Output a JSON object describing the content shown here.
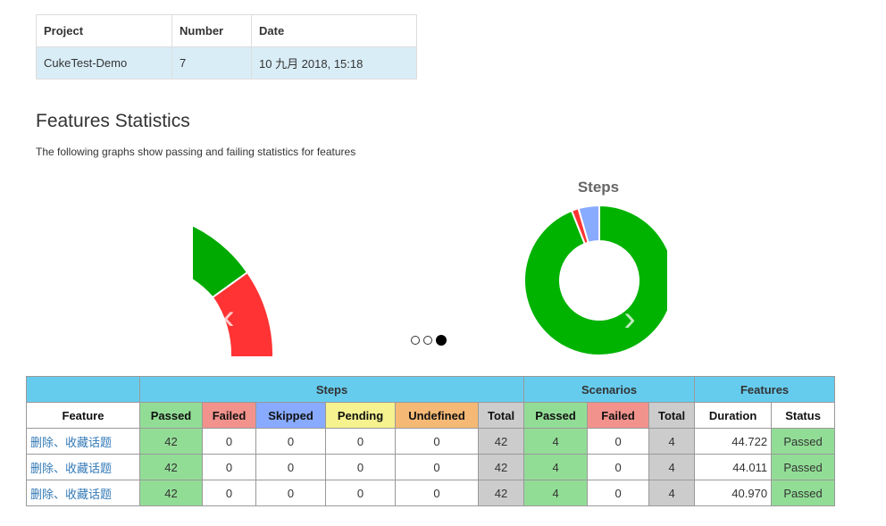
{
  "info": {
    "headers": [
      "Project",
      "Number",
      "Date"
    ],
    "values": [
      "CukeTest-Demo",
      "7",
      "10 九月 2018, 15:18"
    ]
  },
  "section": {
    "title": "Features Statistics",
    "description": "The following graphs show passing and failing statistics for features"
  },
  "carousel": {
    "prev_icon": "chevron-left-icon",
    "next_icon": "chevron-right-icon",
    "prev_glyph": "‹",
    "next_glyph": "›",
    "active_index": 2,
    "count": 3
  },
  "chart_data": [
    {
      "type": "pie",
      "title": "",
      "note": "partially visible carousel slide (features)",
      "slices": [
        {
          "label": "passed",
          "value": 1,
          "color": "#00aa00"
        },
        {
          "label": "failed",
          "value": 1,
          "color": "#ff3333"
        }
      ]
    },
    {
      "type": "pie",
      "title": "Steps",
      "donut": true,
      "slices": [
        {
          "label": "passed",
          "value": 94,
          "color": "#00b300"
        },
        {
          "label": "failed",
          "value": 1.5,
          "color": "#ff3333"
        },
        {
          "label": "skipped",
          "value": 4.5,
          "color": "#88aaff"
        }
      ]
    }
  ],
  "stats": {
    "groups": [
      "",
      "Steps",
      "Scenarios",
      "Features"
    ],
    "headers": [
      "Feature",
      "Passed",
      "Failed",
      "Skipped",
      "Pending",
      "Undefined",
      "Total",
      "Passed",
      "Failed",
      "Total",
      "Duration",
      "Status"
    ],
    "rows": [
      {
        "feature": "删除、收藏话题",
        "s_passed": "42",
        "s_failed": "0",
        "s_skipped": "0",
        "s_pending": "0",
        "s_undefined": "0",
        "s_total": "42",
        "sc_passed": "4",
        "sc_failed": "0",
        "sc_total": "4",
        "duration": "44.722",
        "status": "Passed"
      },
      {
        "feature": "删除、收藏话题",
        "s_passed": "42",
        "s_failed": "0",
        "s_skipped": "0",
        "s_pending": "0",
        "s_undefined": "0",
        "s_total": "42",
        "sc_passed": "4",
        "sc_failed": "0",
        "sc_total": "4",
        "duration": "44.011",
        "status": "Passed"
      },
      {
        "feature": "删除、收藏话题",
        "s_passed": "42",
        "s_failed": "0",
        "s_skipped": "0",
        "s_pending": "0",
        "s_undefined": "0",
        "s_total": "42",
        "sc_passed": "4",
        "sc_failed": "0",
        "sc_total": "4",
        "duration": "40.970",
        "status": "Passed"
      }
    ]
  }
}
